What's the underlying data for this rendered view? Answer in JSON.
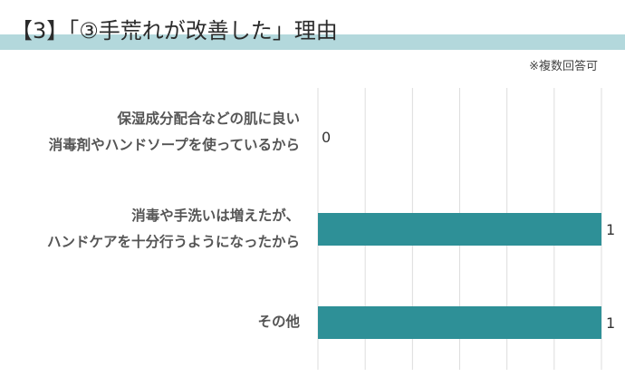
{
  "header": {
    "title": "【3】「③手荒れが改善した」理由",
    "note": "※複数回答可"
  },
  "colors": {
    "bar": "#2e9097",
    "band": "#b3d8dc",
    "grid": "#dddddd"
  },
  "chart_data": {
    "type": "bar",
    "orientation": "horizontal",
    "title": "【3】「③手荒れが改善した」理由",
    "subtitle": "※複数回答可",
    "categories": [
      "保湿成分配合などの肌に良い\n消毒剤やハンドソープを使っているから",
      "消毒や手洗いは増えたが、\nハンドケアを十分行うようになったから",
      "その他"
    ],
    "values": [
      0,
      1,
      1
    ],
    "value_labels": [
      "0",
      "1",
      "1"
    ],
    "xlim": [
      0,
      1
    ],
    "grid": true,
    "legend": "none"
  }
}
